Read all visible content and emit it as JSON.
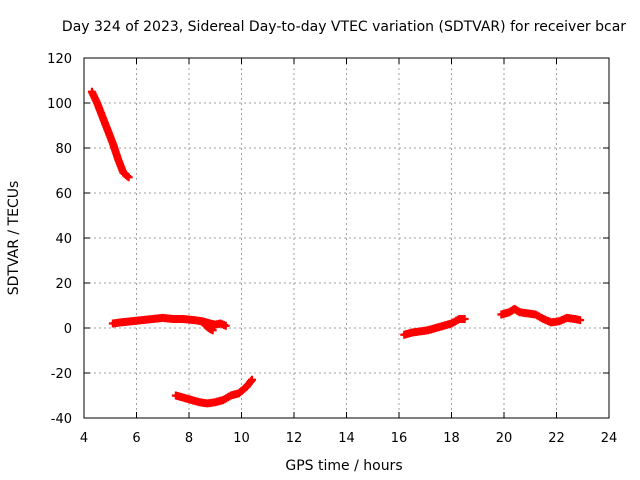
{
  "chart_data": {
    "type": "scatter",
    "title": "Day 324 of 2023, Sidereal Day-to-day VTEC variation (SDTVAR) for receiver bcar",
    "xlabel": "GPS time / hours",
    "ylabel": "SDTVAR / TECUs",
    "xlim": [
      4,
      24
    ],
    "ylim": [
      -40,
      120
    ],
    "xticks": [
      4,
      6,
      8,
      10,
      12,
      14,
      16,
      18,
      20,
      22,
      24
    ],
    "yticks": [
      -40,
      -20,
      0,
      20,
      40,
      60,
      80,
      100,
      120
    ],
    "grid": true,
    "marker": "plus",
    "color": "#ff0000",
    "series": [
      {
        "x": [
          4.3,
          4.5,
          4.7,
          4.9,
          5.1,
          5.3,
          5.5,
          5.7
        ],
        "y": [
          105,
          100,
          94,
          88,
          82,
          75,
          69,
          67
        ]
      },
      {
        "x": [
          5.1,
          5.4,
          5.8,
          6.2,
          6.6,
          7.0,
          7.4,
          7.8,
          8.2,
          8.5,
          8.8,
          9.0,
          9.2,
          9.4
        ],
        "y": [
          2,
          2.5,
          3,
          3.5,
          4,
          4.5,
          4,
          4,
          3.5,
          3,
          2,
          1.5,
          2,
          1
        ]
      },
      {
        "x": [
          8.6,
          8.75,
          8.9
        ],
        "y": [
          1.5,
          0,
          -1
        ]
      },
      {
        "x": [
          7.5,
          7.8,
          8.1,
          8.4,
          8.7,
          9.0,
          9.3,
          9.6,
          9.9,
          10.2,
          10.4
        ],
        "y": [
          -30,
          -31,
          -32,
          -33,
          -33.5,
          -33,
          -32,
          -30,
          -29,
          -26,
          -23
        ]
      },
      {
        "x": [
          16.2,
          16.5,
          16.8,
          17.1,
          17.4,
          17.7,
          18.0,
          18.3,
          18.5
        ],
        "y": [
          -3,
          -2,
          -1.5,
          -1,
          0,
          1,
          2,
          4,
          4
        ]
      },
      {
        "x": [
          19.9,
          20.2,
          20.4,
          20.6,
          20.9,
          21.2,
          21.5,
          21.8,
          22.1,
          22.4,
          22.7,
          22.9
        ],
        "y": [
          6,
          7,
          8.5,
          7,
          6.5,
          6,
          4,
          2.5,
          3,
          4.5,
          4,
          3.5
        ]
      }
    ]
  }
}
